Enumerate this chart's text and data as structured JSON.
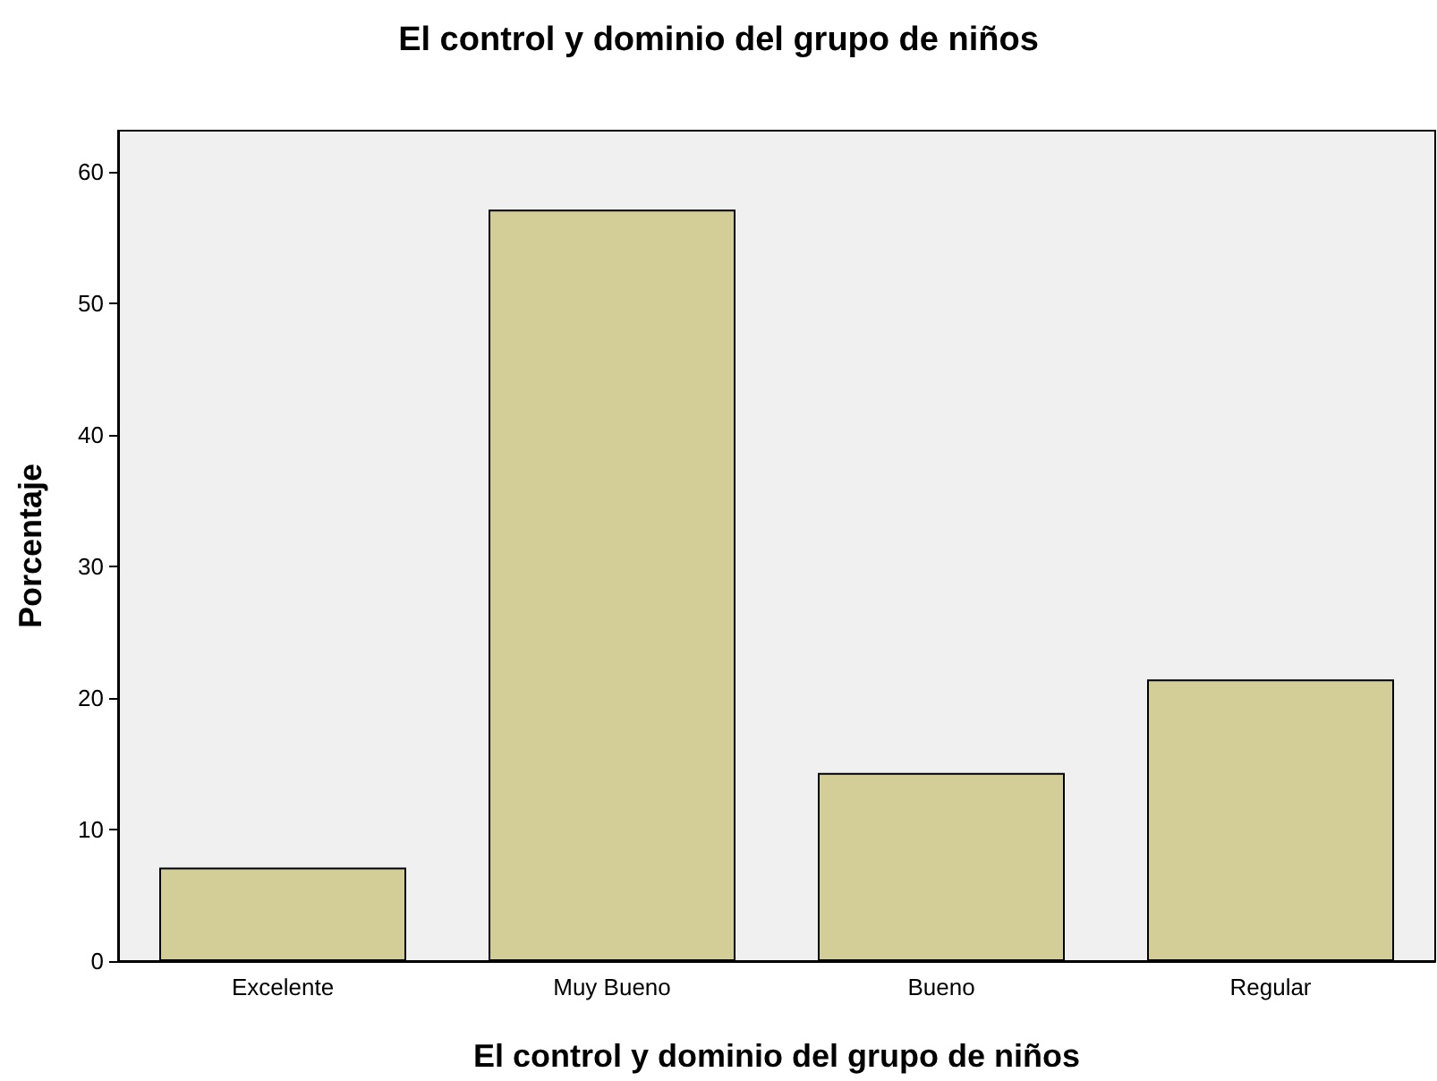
{
  "chart_data": {
    "type": "bar",
    "title": "El control y dominio del grupo de niños",
    "xlabel": "El control y dominio del grupo de niños",
    "ylabel": "Porcentaje",
    "categories": [
      "Excelente",
      "Muy Bueno",
      "Bueno",
      "Regular"
    ],
    "values": [
      7.1,
      57.1,
      14.3,
      21.4
    ],
    "color": "#d3ce97",
    "ylim": [
      0,
      63.1
    ],
    "yticks": [
      0,
      10,
      20,
      30,
      40,
      50,
      60
    ],
    "grid": false
  }
}
